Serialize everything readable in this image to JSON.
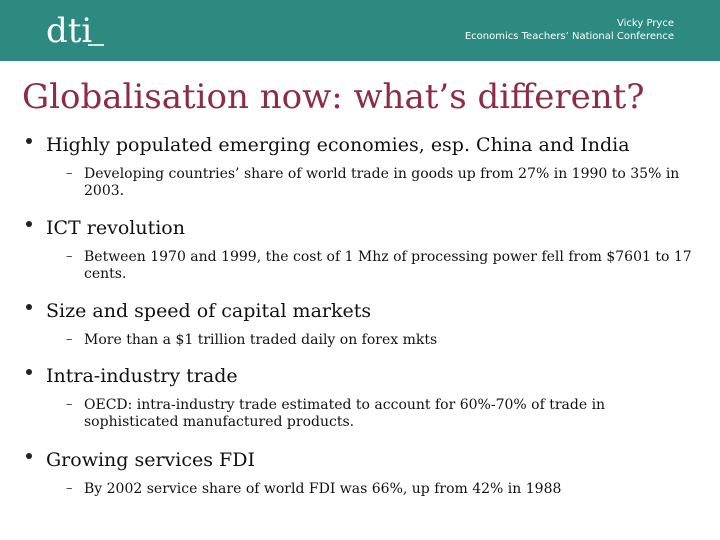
{
  "header": {
    "logo_text": "dti",
    "author": "Vicky Pryce",
    "event": "Economics Teachers’ National Conference"
  },
  "slide": {
    "title": "Globalisation now: what’s different?",
    "points": [
      {
        "text": "Highly populated emerging economies, esp. China and India",
        "sub": "Developing countries’ share of world trade in goods up from 27% in 1990 to 35% in 2003."
      },
      {
        "text": "ICT revolution",
        "sub": "Between 1970 and 1999, the cost of 1 Mhz of processing power fell from $7601 to 17 cents."
      },
      {
        "text": "Size and speed of capital markets",
        "sub": "More than a $1 trillion traded daily on forex mkts"
      },
      {
        "text": "Intra-industry trade",
        "sub": "OECD: intra-industry trade estimated to account for 60%-70% of trade in sophisticated manufactured products."
      },
      {
        "text": "Growing services FDI",
        "sub": "By 2002 service share of world FDI was 66%, up from 42% in 1988"
      }
    ]
  },
  "colors": {
    "header_bg": "#2c8a80",
    "title": "#8e2b46"
  }
}
